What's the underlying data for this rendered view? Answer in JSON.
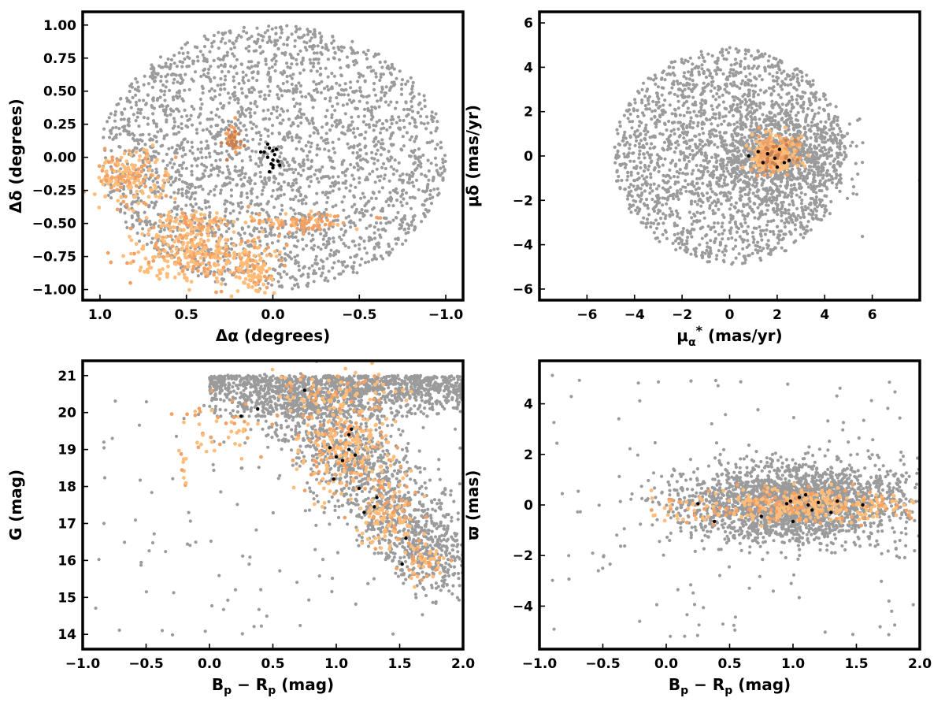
{
  "colors": {
    "field": "#9b9b9b",
    "members_light": "#ffbd79",
    "members_mid": "#f3a064",
    "members_dark": "#c9804e",
    "core": "#000000"
  },
  "chart_data": [
    {
      "id": "sky",
      "type": "scatter",
      "xlabel": "Δα (degrees)",
      "ylabel": "Δδ (degrees)",
      "xlim": [
        1.1,
        -1.1
      ],
      "ylim": [
        -1.08,
        1.1
      ],
      "xticks": [
        1.0,
        0.5,
        0.0,
        -0.5,
        -1.0
      ],
      "xtick_labels": [
        "1.0",
        "0.5",
        "0.0",
        "−0.5",
        "−1.0"
      ],
      "yticks": [
        1.0,
        0.75,
        0.5,
        0.25,
        0.0,
        -0.25,
        -0.5,
        -0.75,
        -1.0
      ],
      "ytick_labels": [
        "1.00",
        "0.75",
        "0.50",
        "0.25",
        "0.00",
        "−0.25",
        "−0.50",
        "−0.75",
        "−1.00"
      ],
      "grid": false,
      "series": [
        {
          "role": "field",
          "shape": "circle",
          "center": [
            0.0,
            0.0
          ],
          "radius": 1.0,
          "points": 2600
        },
        {
          "role": "members_mid",
          "clusters": [
            {
              "x": 0.23,
              "y": 0.12,
              "sx": 0.03,
              "sy": 0.06,
              "n": 40,
              "tone": "dark"
            },
            {
              "x": -0.15,
              "y": -0.5,
              "sx": 0.15,
              "sy": 0.035,
              "n": 90
            }
          ]
        },
        {
          "role": "members_light",
          "clusters": [
            {
              "x": 0.82,
              "y": -0.16,
              "sx": 0.1,
              "sy": 0.1,
              "n": 170
            },
            {
              "x": 0.48,
              "y": -0.5,
              "sx": 0.1,
              "sy": 0.06,
              "n": 110
            },
            {
              "x": 0.45,
              "y": -0.75,
              "sx": 0.2,
              "sy": 0.1,
              "n": 260
            },
            {
              "x": 0.1,
              "y": -0.86,
              "sx": 0.06,
              "sy": 0.09,
              "n": 90
            }
          ]
        },
        {
          "role": "core",
          "points_xy": [
            [
              0.03,
              0.1
            ],
            [
              0.02,
              0.07
            ],
            [
              0.0,
              0.05
            ],
            [
              0.05,
              0.04
            ],
            [
              -0.01,
              0.02
            ],
            [
              0.03,
              0.0
            ],
            [
              0.0,
              -0.02
            ],
            [
              -0.03,
              -0.03
            ],
            [
              0.01,
              -0.05
            ],
            [
              0.0,
              -0.08
            ],
            [
              0.02,
              -0.11
            ],
            [
              -0.04,
              -0.06
            ],
            [
              0.07,
              0.04
            ],
            [
              -0.02,
              0.06
            ],
            [
              0.0,
              -0.06
            ]
          ]
        }
      ]
    },
    {
      "id": "proper-motion",
      "type": "scatter",
      "xlabel": "μ",
      "xlabel_sub": "α",
      "xlabel_sup": "*",
      "xlabel_unit": "  (mas/yr)",
      "ylabel": "μδ (mas/yr)",
      "xlim": [
        -8,
        8
      ],
      "ylim": [
        -6.5,
        6.5
      ],
      "xticks": [
        -6,
        -4,
        -2,
        0,
        2,
        4,
        6
      ],
      "xtick_labels": [
        "−6",
        "−4",
        "−2",
        "0",
        "2",
        "4",
        "6"
      ],
      "yticks": [
        6,
        4,
        2,
        0,
        -2,
        -4,
        -6
      ],
      "ytick_labels": [
        "6",
        "4",
        "2",
        "0",
        "−2",
        "−4",
        "−6"
      ],
      "grid": false,
      "series": [
        {
          "role": "field",
          "shape": "circle",
          "center": [
            0.0,
            0.0
          ],
          "radius": 4.9,
          "points": 1900
        },
        {
          "role": "field",
          "shape": "blob",
          "center": [
            2.0,
            0.0
          ],
          "sx": 1.4,
          "sy": 1.2,
          "points": 900
        },
        {
          "role": "members_light",
          "clusters": [
            {
              "x": 1.9,
              "y": 0.0,
              "sx": 0.45,
              "sy": 0.45,
              "n": 280
            }
          ]
        },
        {
          "role": "members_mid",
          "clusters": [
            {
              "x": 1.9,
              "y": 0.1,
              "sx": 0.35,
              "sy": 0.35,
              "n": 40,
              "tone": "dark"
            }
          ]
        },
        {
          "role": "core",
          "points_xy": [
            [
              0.8,
              0.0
            ],
            [
              1.2,
              0.2
            ],
            [
              2.0,
              -0.5
            ],
            [
              2.3,
              -0.3
            ],
            [
              1.6,
              0.1
            ],
            [
              2.5,
              -0.2
            ],
            [
              1.9,
              -0.1
            ],
            [
              1.4,
              -0.3
            ],
            [
              2.1,
              0.3
            ]
          ]
        }
      ]
    },
    {
      "id": "cmd",
      "type": "scatter",
      "xlabel": "B",
      "xlabel_sub1": "p",
      "xlabel_mid": " − R",
      "xlabel_sub2": "p",
      "xlabel_unit": " (mag)",
      "ylabel": "G (mag)",
      "xlim": [
        -1.0,
        2.0
      ],
      "ylim": [
        13.6,
        21.4
      ],
      "xticks": [
        -1.0,
        -0.5,
        0.0,
        0.5,
        1.0,
        1.5,
        2.0
      ],
      "xtick_labels": [
        "−1.0",
        "−0.5",
        "0.0",
        "0.5",
        "1.0",
        "1.5",
        "2.0"
      ],
      "yticks": [
        21,
        20,
        19,
        18,
        17,
        16,
        15,
        14
      ],
      "ytick_labels": [
        "21",
        "20",
        "19",
        "18",
        "17",
        "16",
        "15",
        "14"
      ],
      "grid": false,
      "series": [
        {
          "role": "field",
          "shape": "band",
          "x_range": [
            0.0,
            2.0
          ],
          "y_range": [
            19.9,
            21.0
          ],
          "points": 1300
        },
        {
          "role": "field",
          "shape": "sequence",
          "path_x": [
            0.6,
            0.95,
            1.2,
            1.45,
            1.7,
            1.95
          ],
          "path_y": [
            20.5,
            19.5,
            18.5,
            17.3,
            16.4,
            15.6
          ],
          "spread": 0.22,
          "points": 1500
        },
        {
          "role": "field",
          "shape": "scatter",
          "x_range": [
            -0.9,
            2.0
          ],
          "y_range": [
            13.9,
            21.0
          ],
          "points": 120
        },
        {
          "role": "members_light",
          "clusters": [
            {
              "x": 1.05,
              "y": 19.0,
              "sx": 0.18,
              "sy": 0.6,
              "n": 220
            },
            {
              "x": 1.4,
              "y": 17.3,
              "sx": 0.12,
              "sy": 0.5,
              "n": 120
            },
            {
              "x": 1.7,
              "y": 16.0,
              "sx": 0.1,
              "sy": 0.3,
              "n": 50
            },
            {
              "x": 1.0,
              "y": 20.5,
              "sx": 0.25,
              "sy": 0.3,
              "n": 90
            },
            {
              "x": 0.15,
              "y": 19.6,
              "sx": 0.2,
              "sy": 0.4,
              "n": 45
            },
            {
              "x": -0.2,
              "y": 18.5,
              "sx": 0.03,
              "sy": 0.3,
              "n": 10
            }
          ]
        },
        {
          "role": "core",
          "points_xy": [
            [
              0.75,
              20.6
            ],
            [
              0.25,
              19.9
            ],
            [
              0.38,
              20.1
            ],
            [
              0.95,
              19.05
            ],
            [
              1.0,
              18.8
            ],
            [
              1.1,
              19.0
            ],
            [
              1.15,
              18.85
            ],
            [
              1.05,
              18.7
            ],
            [
              1.1,
              19.4
            ],
            [
              1.12,
              19.55
            ],
            [
              0.98,
              18.2
            ],
            [
              1.18,
              17.95
            ],
            [
              1.22,
              17.3
            ],
            [
              1.3,
              17.45
            ],
            [
              1.32,
              17.7
            ],
            [
              1.55,
              16.6
            ],
            [
              1.52,
              15.9
            ]
          ]
        }
      ]
    },
    {
      "id": "parallax",
      "type": "scatter",
      "xlabel": "B",
      "xlabel_sub1": "p",
      "xlabel_mid": " − R",
      "xlabel_sub2": "p",
      "xlabel_unit": " (mag)",
      "ylabel": "ϖ (mas)",
      "xlim": [
        -1.0,
        2.0
      ],
      "ylim": [
        -5.7,
        5.7
      ],
      "xticks": [
        -1.0,
        -0.5,
        0.0,
        0.5,
        1.0,
        1.5,
        2.0
      ],
      "xtick_labels": [
        "−1.0",
        "−0.5",
        "0.0",
        "0.5",
        "1.0",
        "1.5",
        "2.0"
      ],
      "yticks": [
        4,
        2,
        0,
        -2,
        -4
      ],
      "ytick_labels": [
        "4",
        "2",
        "0",
        "−2",
        "−4"
      ],
      "grid": false,
      "series": [
        {
          "role": "field",
          "shape": "blob",
          "center": [
            1.0,
            0.1
          ],
          "sx": 0.45,
          "sy": 0.75,
          "points": 2300
        },
        {
          "role": "field",
          "shape": "scatter",
          "x_range": [
            -0.9,
            2.0
          ],
          "y_range": [
            -5.2,
            5.2
          ],
          "points": 140
        },
        {
          "role": "members_light",
          "clusters": [
            {
              "x": 1.1,
              "y": 0.0,
              "sx": 0.3,
              "sy": 0.35,
              "n": 300
            },
            {
              "x": 0.2,
              "y": 0.0,
              "sx": 0.15,
              "sy": 0.4,
              "n": 40
            },
            {
              "x": 1.7,
              "y": -0.1,
              "sx": 0.12,
              "sy": 0.2,
              "n": 40
            }
          ]
        },
        {
          "role": "core",
          "points_xy": [
            [
              0.25,
              0.05
            ],
            [
              0.38,
              -0.65
            ],
            [
              0.75,
              -0.45
            ],
            [
              0.95,
              0.05
            ],
            [
              1.0,
              -0.65
            ],
            [
              1.05,
              0.3
            ],
            [
              1.1,
              0.4
            ],
            [
              1.12,
              0.0
            ],
            [
              1.15,
              -0.2
            ],
            [
              1.2,
              0.1
            ],
            [
              1.3,
              -0.3
            ],
            [
              1.35,
              0.15
            ],
            [
              1.55,
              0.0
            ],
            [
              0.98,
              0.15
            ]
          ]
        }
      ]
    }
  ]
}
